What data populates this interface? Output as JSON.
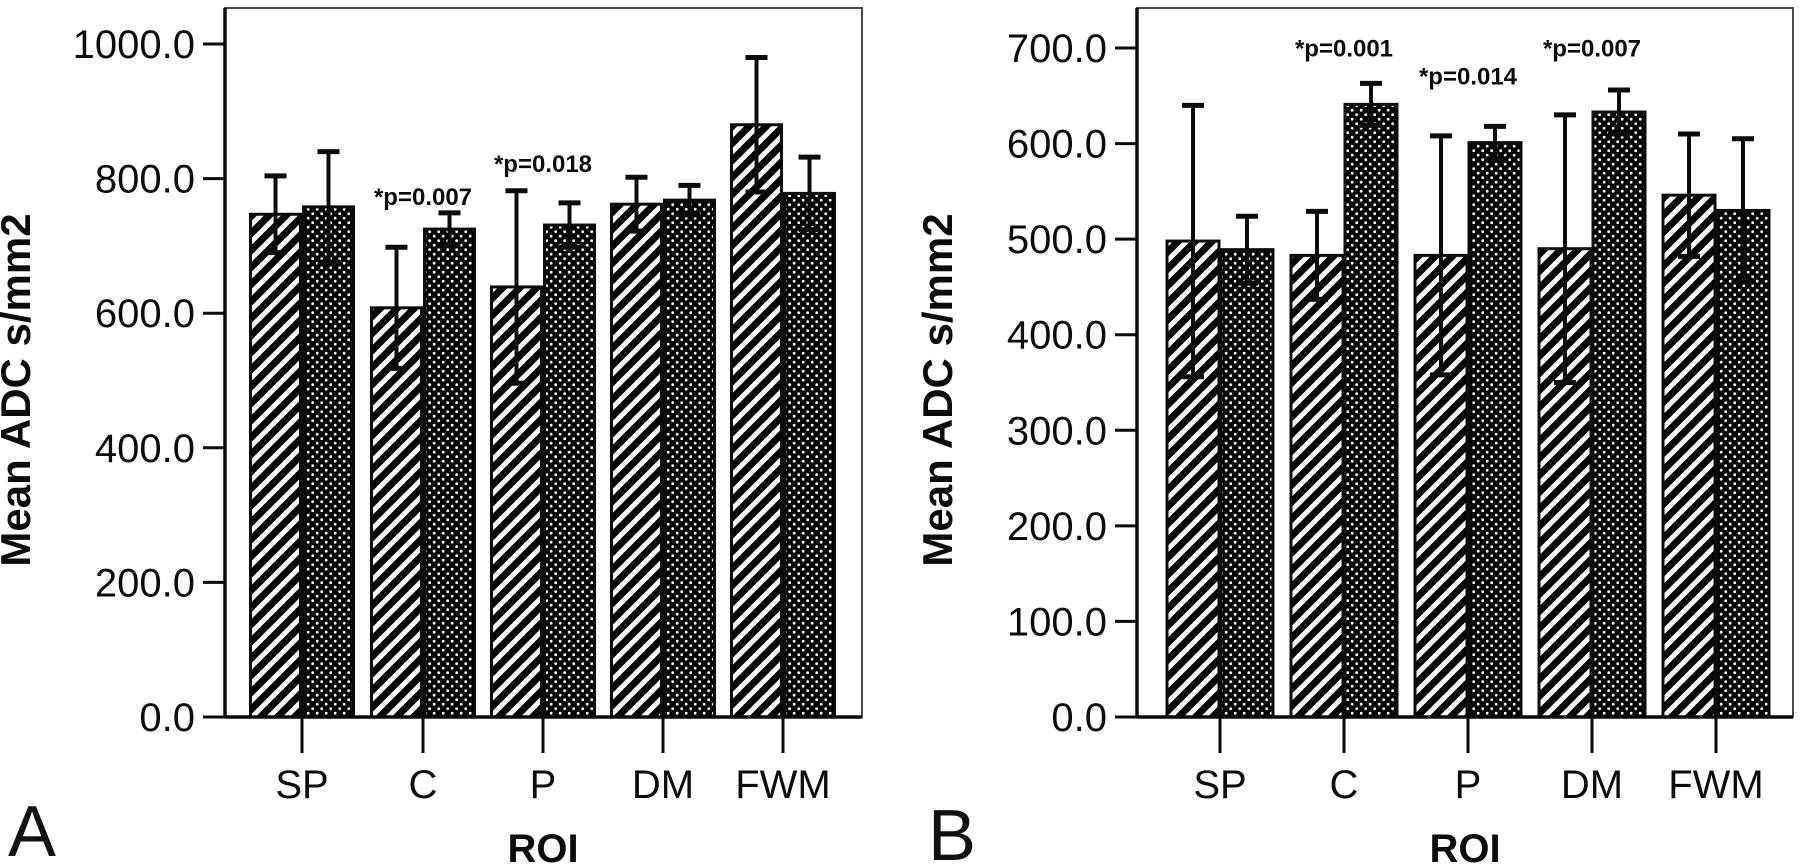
{
  "colors": {
    "bar_fill": "#000000",
    "background": "#ffffff",
    "ink": "#0b0b0b"
  },
  "chart_data": [
    {
      "type": "bar",
      "panel_label": "A",
      "ylabel": "Mean ADC s/mm2",
      "xlabel": "ROI",
      "categories": [
        "SP",
        "C",
        "P",
        "DM",
        "FWM"
      ],
      "y_tick_labels": [
        "0.0",
        "200.0",
        "400.0",
        "600.0",
        "800.0",
        "1000.0"
      ],
      "y_tick_values": [
        0,
        200,
        400,
        600,
        800,
        1000
      ],
      "ylim": [
        0,
        1000
      ],
      "grid": false,
      "legend": "none",
      "series": [
        {
          "name": "hatched",
          "pattern": "diagonal-hatch",
          "values": [
            747,
            608,
            639,
            762,
            880
          ],
          "errors": [
            57,
            90,
            143,
            40,
            100
          ]
        },
        {
          "name": "dotted",
          "pattern": "dot-grid",
          "values": [
            758,
            725,
            731,
            768,
            778
          ],
          "errors": [
            82,
            24,
            33,
            22,
            54
          ]
        }
      ],
      "annotations": [
        {
          "text": "*p=0.007",
          "category": "C",
          "y": 761
        },
        {
          "text": "*p=0.018",
          "category": "P",
          "y": 810
        }
      ]
    },
    {
      "type": "bar",
      "panel_label": "B",
      "ylabel": "Mean ADC s/mm2",
      "xlabel": "ROI",
      "categories": [
        "SP",
        "C",
        "P",
        "DM",
        "FWM"
      ],
      "y_tick_labels": [
        "0.0",
        "100.0",
        "200.0",
        "300.0",
        "400.0",
        "500.0",
        "600.0",
        "700.0"
      ],
      "y_tick_values": [
        0,
        100,
        200,
        300,
        400,
        500,
        600,
        700
      ],
      "ylim": [
        0,
        700
      ],
      "grid": false,
      "legend": "none",
      "series": [
        {
          "name": "hatched",
          "pattern": "diagonal-hatch",
          "values": [
            498,
            483,
            483,
            490,
            546
          ],
          "errors": [
            142,
            46,
            125,
            140,
            64
          ]
        },
        {
          "name": "dotted",
          "pattern": "dot-grid",
          "values": [
            489,
            641,
            601,
            633,
            530
          ],
          "errors": [
            35,
            22,
            17,
            23,
            75
          ]
        }
      ],
      "annotations": [
        {
          "text": "*p=0.001",
          "category": "C",
          "y": 691
        },
        {
          "text": "*p=0.014",
          "category": "P",
          "y": 662
        },
        {
          "text": "*p=0.007",
          "category": "DM",
          "y": 691
        }
      ]
    }
  ]
}
